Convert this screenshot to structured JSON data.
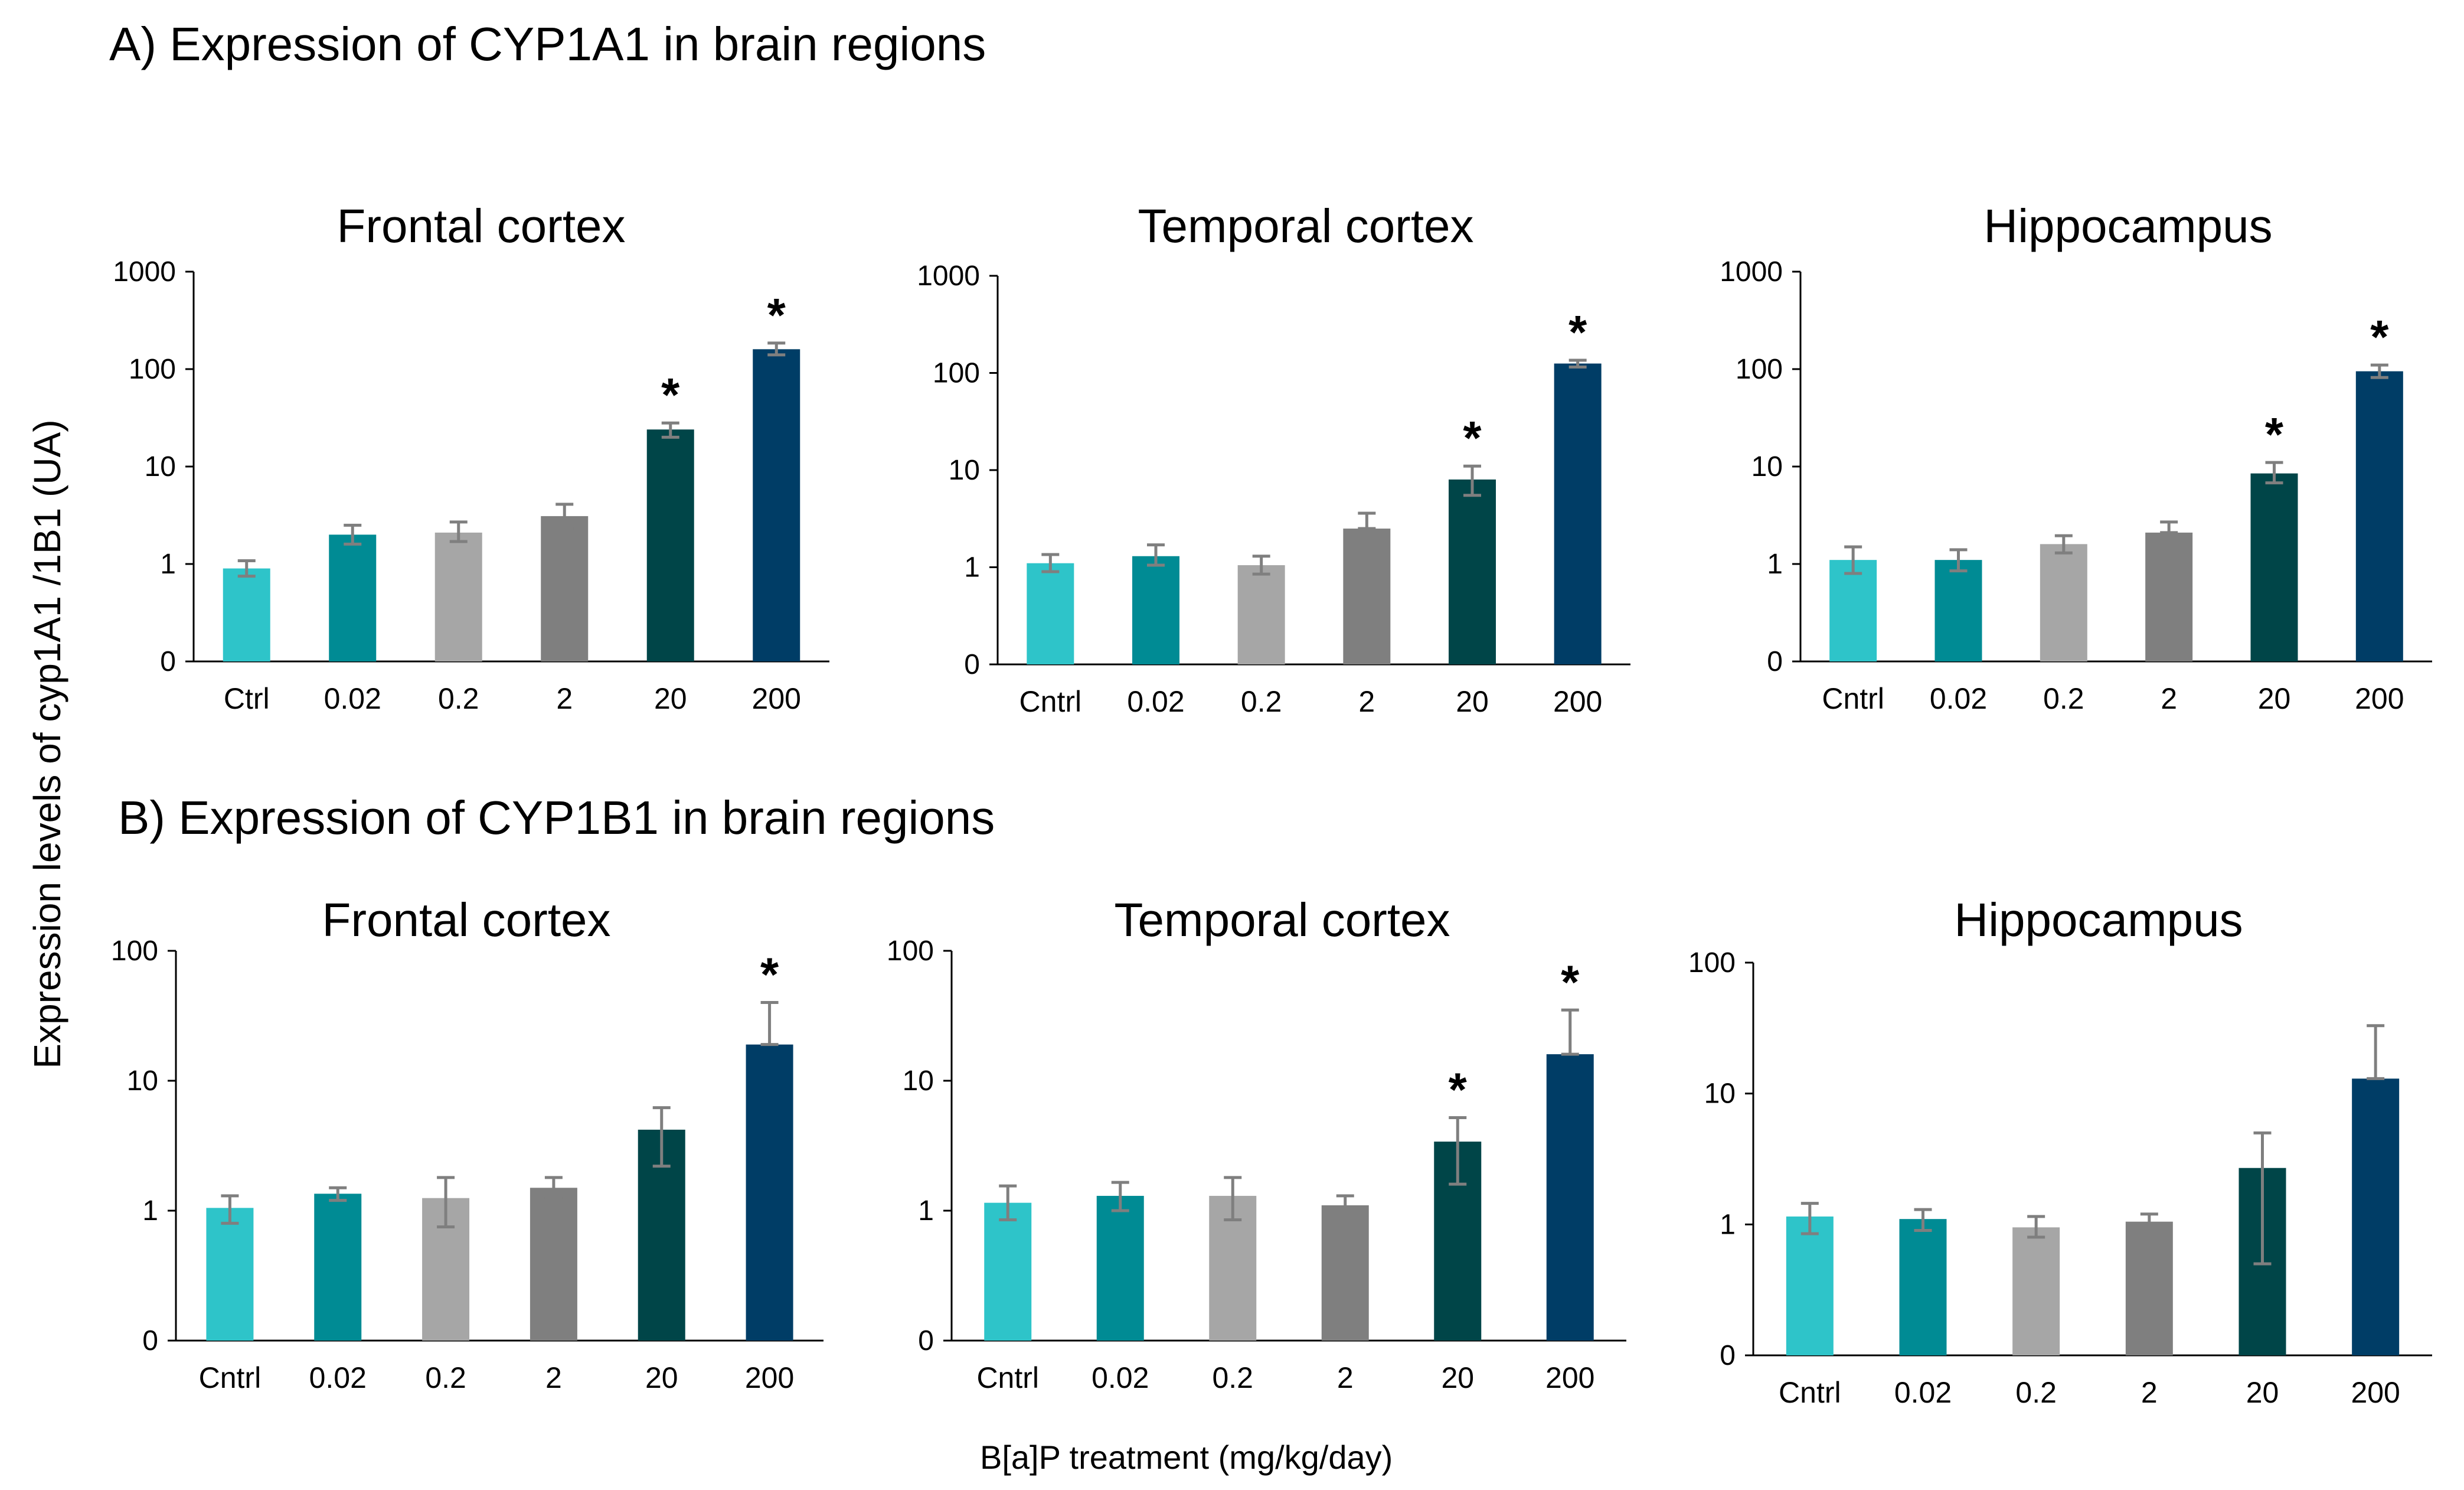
{
  "figure": {
    "section_a_title": "A) Expression of CYP1A1 in brain regions",
    "section_b_title": "B) Expression of CYP1B1 in brain regions",
    "ylabel": "Expression levels of cyp1A1 /1B1 (UA)",
    "xlabel": "B[a]P treatment (mg/kg/day)"
  },
  "colors": [
    "#2ec4c9",
    "#008b94",
    "#a6a6a6",
    "#7f7f7f",
    "#004548",
    "#003d66"
  ],
  "chart_data": [
    {
      "id": "a-frontal",
      "type": "bar",
      "title": "Frontal cortex",
      "scale": "log",
      "yticks": [
        "1000",
        "100",
        "10",
        "1",
        "0"
      ],
      "categories": [
        "Ctrl",
        "0.02",
        "0.2",
        "2",
        "20",
        "200"
      ],
      "values": [
        0.9,
        2.0,
        2.1,
        3.1,
        24,
        160
      ],
      "err_low": [
        0.75,
        1.6,
        1.7,
        2.3,
        20,
        140
      ],
      "err_high": [
        1.08,
        2.5,
        2.7,
        4.1,
        28,
        185
      ],
      "significant": [
        false,
        false,
        false,
        false,
        true,
        true
      ]
    },
    {
      "id": "a-temporal",
      "type": "bar",
      "title": "Temporal cortex",
      "scale": "log",
      "yticks": [
        "1000",
        "100",
        "10",
        "1",
        "0"
      ],
      "categories": [
        "Cntrl",
        "0.02",
        "0.2",
        "2",
        "20",
        "200"
      ],
      "values": [
        1.1,
        1.3,
        1.05,
        2.5,
        8,
        125
      ],
      "err_low": [
        0.9,
        1.05,
        0.85,
        2.5,
        5.5,
        115
      ],
      "err_high": [
        1.35,
        1.7,
        1.3,
        3.6,
        11,
        135
      ],
      "significant": [
        false,
        false,
        false,
        false,
        true,
        true
      ]
    },
    {
      "id": "a-hippocampus",
      "type": "bar",
      "title": "Hippocampus",
      "scale": "log",
      "yticks": [
        "1000",
        "100",
        "10",
        "1",
        "0"
      ],
      "categories": [
        "Cntrl",
        "0.02",
        "0.2",
        "2",
        "20",
        "200"
      ],
      "values": [
        1.1,
        1.1,
        1.6,
        2.1,
        8.5,
        95
      ],
      "err_low": [
        0.8,
        0.85,
        1.3,
        2.1,
        6.8,
        82
      ],
      "err_high": [
        1.5,
        1.4,
        1.95,
        2.7,
        11,
        110
      ],
      "significant": [
        false,
        false,
        false,
        false,
        true,
        true
      ]
    },
    {
      "id": "b-frontal",
      "type": "bar",
      "title": "Frontal cortex",
      "scale": "log",
      "yticks": [
        "100",
        "10",
        "1",
        "0"
      ],
      "categories": [
        "Cntrl",
        "0.02",
        "0.2",
        "2",
        "20",
        "200"
      ],
      "values": [
        1.05,
        1.35,
        1.25,
        1.5,
        4.2,
        19
      ],
      "err_low": [
        0.8,
        1.2,
        0.75,
        1.25,
        2.2,
        19
      ],
      "err_high": [
        1.3,
        1.5,
        1.8,
        1.8,
        6.2,
        40
      ],
      "significant": [
        false,
        false,
        false,
        false,
        false,
        true
      ]
    },
    {
      "id": "b-temporal",
      "type": "bar",
      "title": "Temporal cortex",
      "scale": "log",
      "yticks": [
        "100",
        "10",
        "1",
        "0"
      ],
      "categories": [
        "Cntrl",
        "0.02",
        "0.2",
        "2",
        "20",
        "200"
      ],
      "values": [
        1.15,
        1.3,
        1.3,
        1.1,
        3.4,
        16
      ],
      "err_low": [
        0.85,
        1.0,
        0.85,
        0.95,
        1.6,
        16
      ],
      "err_high": [
        1.55,
        1.65,
        1.8,
        1.3,
        5.2,
        35
      ],
      "significant": [
        false,
        false,
        false,
        false,
        true,
        true
      ]
    },
    {
      "id": "b-hippocampus",
      "type": "bar",
      "title": "Hippocampus",
      "scale": "log",
      "yticks": [
        "100",
        "10",
        "1",
        "0"
      ],
      "categories": [
        "Cntrl",
        "0.02",
        "0.2",
        "2",
        "20",
        "200"
      ],
      "values": [
        1.15,
        1.1,
        0.95,
        1.05,
        2.7,
        13
      ],
      "err_low": [
        0.85,
        0.9,
        0.8,
        0.9,
        0.5,
        13
      ],
      "err_high": [
        1.45,
        1.3,
        1.15,
        1.2,
        5.0,
        33
      ],
      "significant": [
        false,
        false,
        false,
        false,
        false,
        false
      ]
    }
  ]
}
